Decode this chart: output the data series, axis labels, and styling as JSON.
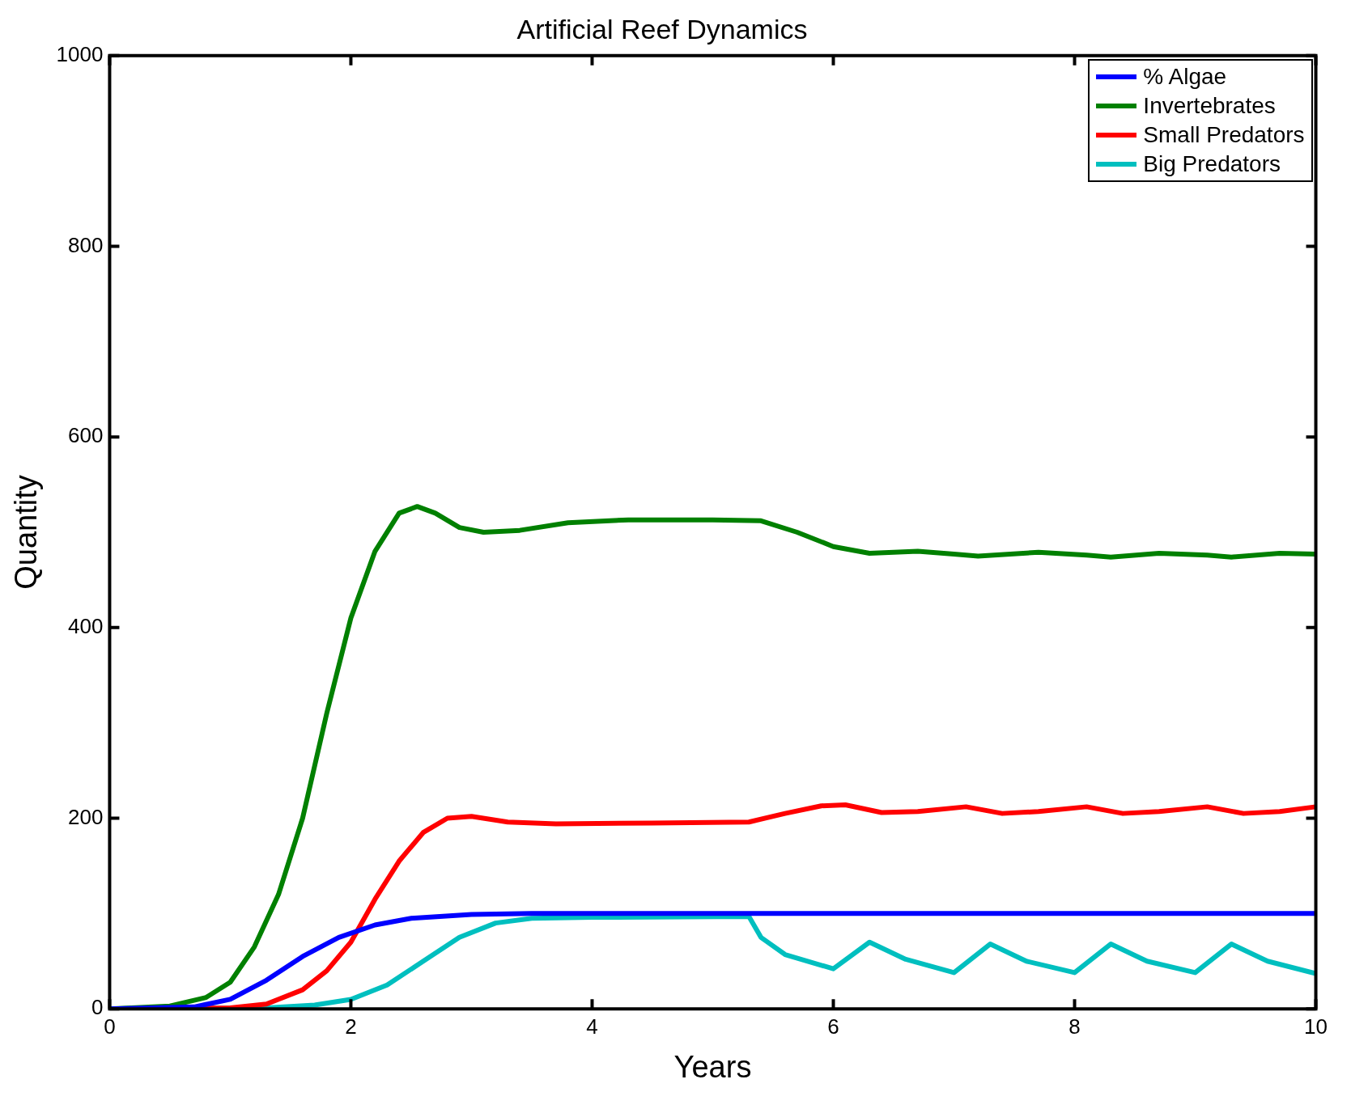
{
  "chart_data": {
    "type": "line",
    "title": "Artificial Reef Dynamics",
    "xlabel": "Years",
    "ylabel": "Quantity",
    "xlim": [
      0,
      10
    ],
    "xticks": [
      0,
      2,
      4,
      6,
      8,
      10
    ],
    "ylim": [
      0,
      1000
    ],
    "yticks": [
      0,
      200,
      400,
      600,
      800,
      1000
    ],
    "grid": false,
    "legend": "top right",
    "marker": "none",
    "line_style": "solid",
    "series": [
      {
        "name": "% Algae",
        "color": "#0000ff",
        "x": [
          0,
          0.7,
          1.0,
          1.3,
          1.6,
          1.9,
          2.2,
          2.5,
          3.0,
          3.5,
          10
        ],
        "values": [
          0,
          2,
          10,
          30,
          55,
          75,
          88,
          95,
          99,
          100,
          100
        ]
      },
      {
        "name": "Invertebrates",
        "color": "#008000",
        "x": [
          0,
          0.5,
          0.8,
          1.0,
          1.2,
          1.4,
          1.6,
          1.8,
          2.0,
          2.2,
          2.4,
          2.55,
          2.7,
          2.9,
          3.1,
          3.4,
          3.8,
          4.3,
          5.0,
          5.4,
          5.7,
          6.0,
          6.3,
          6.7,
          7.0,
          7.2,
          7.7,
          8.1,
          8.3,
          8.7,
          9.1,
          9.3,
          9.7,
          10
        ],
        "values": [
          0,
          3,
          12,
          28,
          65,
          120,
          200,
          310,
          410,
          480,
          520,
          527,
          520,
          505,
          500,
          502,
          510,
          513,
          513,
          512,
          500,
          485,
          478,
          480,
          477,
          475,
          479,
          476,
          474,
          478,
          476,
          474,
          478,
          477
        ]
      },
      {
        "name": "Small Predators",
        "color": "#ff0000",
        "x": [
          0,
          1.0,
          1.3,
          1.6,
          1.8,
          2.0,
          2.2,
          2.4,
          2.6,
          2.8,
          3.0,
          3.3,
          3.7,
          4.5,
          5.3,
          5.6,
          5.9,
          6.1,
          6.4,
          6.7,
          7.1,
          7.4,
          7.7,
          8.1,
          8.4,
          8.7,
          9.1,
          9.4,
          9.7,
          10
        ],
        "values": [
          0,
          1,
          5,
          20,
          40,
          70,
          115,
          155,
          185,
          200,
          202,
          196,
          194,
          195,
          196,
          205,
          213,
          214,
          206,
          207,
          212,
          205,
          207,
          212,
          205,
          207,
          212,
          205,
          207,
          212
        ]
      },
      {
        "name": "Big Predators",
        "color": "#00bfbf",
        "x": [
          0,
          1.3,
          1.7,
          2.0,
          2.3,
          2.6,
          2.9,
          3.2,
          3.5,
          4.0,
          5.3,
          5.4,
          5.6,
          6.0,
          6.3,
          6.6,
          7.0,
          7.3,
          7.6,
          8.0,
          8.3,
          8.6,
          9.0,
          9.3,
          9.6,
          10
        ],
        "values": [
          0,
          1,
          4,
          10,
          25,
          50,
          75,
          90,
          95,
          96,
          97,
          75,
          57,
          42,
          70,
          52,
          38,
          68,
          50,
          38,
          68,
          50,
          38,
          68,
          50,
          37
        ]
      }
    ]
  }
}
